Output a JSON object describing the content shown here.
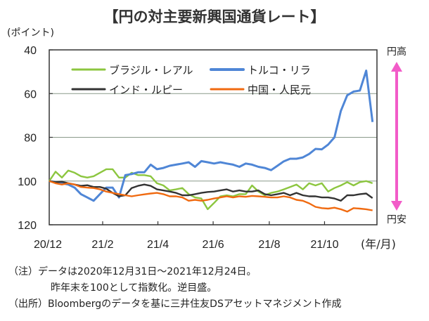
{
  "title": "【円の対主要新興国通貨レート】",
  "chart_data": {
    "type": "line",
    "title": "【円の対主要新興国通貨レート】",
    "ylabel": "(ポイント)",
    "xlabel": "(年/月)",
    "ylim": [
      40,
      120
    ],
    "y_inverted": true,
    "yticks": [
      40,
      60,
      80,
      100,
      120
    ],
    "xlim_days": [
      0,
      358
    ],
    "xticks": [
      {
        "day": 0,
        "label": "20/12"
      },
      {
        "day": 59,
        "label": "21/2"
      },
      {
        "day": 120,
        "label": "21/4"
      },
      {
        "day": 181,
        "label": "21/6"
      },
      {
        "day": 243,
        "label": "21/8"
      },
      {
        "day": 304,
        "label": "21/10"
      }
    ],
    "grid": "horizontal",
    "legend_position": "top-left",
    "x_days": [
      0,
      7,
      14,
      21,
      28,
      35,
      42,
      49,
      56,
      63,
      70,
      77,
      84,
      91,
      98,
      105,
      112,
      119,
      126,
      133,
      140,
      147,
      154,
      161,
      168,
      175,
      182,
      189,
      196,
      203,
      210,
      217,
      224,
      231,
      238,
      245,
      252,
      259,
      266,
      273,
      280,
      287,
      294,
      301,
      308,
      315,
      322,
      329,
      336,
      343,
      350,
      357
    ],
    "series": [
      {
        "name": "ブラジル・レアル",
        "color": "#8cc63f",
        "values": [
          100,
          95.7,
          98.4,
          95.2,
          96.2,
          97.8,
          98.4,
          97.8,
          96.2,
          94.6,
          94.6,
          98.4,
          98.4,
          96.2,
          97.3,
          97.3,
          97.8,
          101,
          102,
          104.3,
          103.8,
          103.2,
          106,
          107.5,
          108,
          112.9,
          110,
          107,
          106.5,
          107,
          106,
          106,
          102,
          104.8,
          106.5,
          105.4,
          104.8,
          103.8,
          102.7,
          101.6,
          103.8,
          101,
          102,
          101,
          104.8,
          103.2,
          102,
          100.5,
          102,
          100.5,
          100,
          101
        ]
      },
      {
        "name": "トルコ・リラ",
        "color": "#4f86d6",
        "values": [
          100,
          100.5,
          101,
          101.6,
          103,
          106,
          107.5,
          109,
          106,
          103,
          103,
          107.5,
          97.3,
          96.8,
          96,
          96,
          92.5,
          94.6,
          94,
          93,
          92.5,
          92,
          91.4,
          93.5,
          90.9,
          91.4,
          92,
          91.4,
          92,
          92.5,
          93.5,
          92,
          92.5,
          93.5,
          94,
          95,
          93,
          91,
          89.8,
          89.8,
          89.2,
          87.6,
          85.3,
          85.5,
          83.3,
          80,
          68,
          60.8,
          59.1,
          58.6,
          49.5,
          73
        ]
      },
      {
        "name": "インド・ルピー",
        "color": "#333333",
        "values": [
          100,
          100.5,
          100.3,
          101,
          101.6,
          102.2,
          101.9,
          102.7,
          102.7,
          103.5,
          105.4,
          107,
          106.5,
          103.2,
          102.2,
          101.6,
          102.2,
          103.8,
          104.3,
          104.8,
          105.4,
          106.5,
          106.5,
          106,
          105.4,
          105,
          104.8,
          104.3,
          103.8,
          104.8,
          104.3,
          104.8,
          104.8,
          104.3,
          106,
          106.5,
          106,
          105.4,
          106.5,
          105.4,
          106.5,
          107,
          107,
          107.5,
          107.5,
          108,
          109,
          106.5,
          106.5,
          106,
          105.7,
          107.8
        ]
      },
      {
        "name": "中国・人民元",
        "color": "#f06a10",
        "values": [
          100,
          101,
          101.6,
          101,
          101.6,
          102.7,
          103,
          103.2,
          103.8,
          104.8,
          105.4,
          106,
          106.5,
          107,
          106.5,
          106.1,
          105.7,
          105.4,
          106,
          107,
          107,
          107.5,
          109,
          108.6,
          109,
          108.6,
          108,
          107.5,
          107,
          107.5,
          107,
          107.2,
          106.8,
          107,
          107.2,
          107.5,
          107.5,
          107,
          107.5,
          108.6,
          109,
          110.2,
          111.8,
          112.4,
          112.6,
          112.2,
          112.9,
          114,
          112.4,
          112.6,
          112.9,
          113.4
        ]
      }
    ],
    "annotations": {
      "top": "円高",
      "bottom": "円安",
      "arrow_color": "#f25bc8"
    }
  },
  "notes": {
    "line1": "（注）データは2020年12月31日～2021年12月24日。",
    "line2": "昨年末を100として指数化。逆目盛。",
    "line3": "（出所）Bloombergのデータを基に三井住友DSアセットマネジメント作成"
  }
}
